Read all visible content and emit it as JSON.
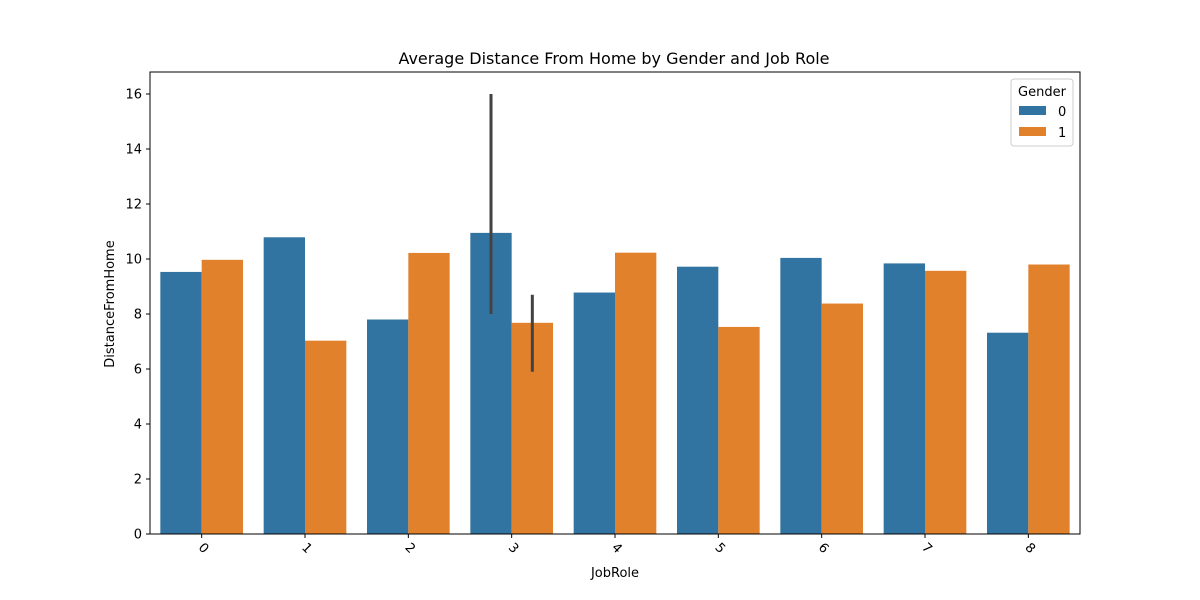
{
  "chart_data": {
    "type": "bar",
    "title": "Average Distance From Home by Gender and Job Role",
    "xlabel": "JobRole",
    "ylabel": "DistanceFromHome",
    "categories": [
      "0",
      "1",
      "2",
      "3",
      "4",
      "5",
      "6",
      "7",
      "8"
    ],
    "ylim": [
      0,
      16.8
    ],
    "yticks": [
      "0",
      "2",
      "4",
      "6",
      "8",
      "10",
      "12",
      "14",
      "16"
    ],
    "grid": false,
    "legend": {
      "title": "Gender",
      "placement": "top-right"
    },
    "series": [
      {
        "name": "0",
        "color": "#3274a1",
        "values": [
          9.53,
          10.79,
          7.8,
          10.95,
          8.78,
          9.72,
          10.04,
          9.84,
          7.32
        ]
      },
      {
        "name": "1",
        "color": "#e1812c",
        "values": [
          9.97,
          7.03,
          10.22,
          7.68,
          10.23,
          7.53,
          8.38,
          9.57,
          9.8
        ]
      }
    ],
    "error_bars": [
      {
        "category": "3",
        "series": "0",
        "low": 8.0,
        "high": 16.0
      },
      {
        "category": "3",
        "series": "1",
        "low": 5.9,
        "high": 8.7
      }
    ]
  }
}
